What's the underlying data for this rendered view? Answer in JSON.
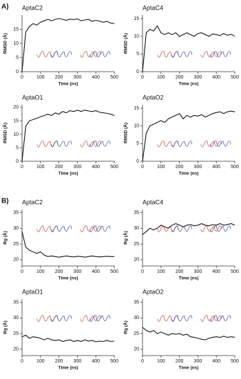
{
  "panel_labels": [
    "A)",
    "B)"
  ],
  "chart_data": [
    {
      "type": "line",
      "title": "AptaC2",
      "ylabel": "RMSD (Å)",
      "xlabel": "Time (ns)",
      "xlim": [
        0,
        500
      ],
      "xticks": [
        0,
        100,
        200,
        300,
        400,
        500
      ],
      "ylim": [
        0,
        20
      ],
      "yticks": [
        0,
        5,
        10,
        15
      ],
      "color": "#111111",
      "x": [
        0,
        20,
        40,
        60,
        80,
        100,
        120,
        140,
        160,
        180,
        200,
        220,
        240,
        260,
        280,
        300,
        320,
        340,
        360,
        380,
        400,
        420,
        440,
        460,
        480,
        500
      ],
      "values": [
        0,
        14,
        16,
        17,
        16.5,
        17.5,
        18,
        18.5,
        18,
        18.5,
        18.8,
        18.5,
        18.2,
        18.6,
        18.4,
        18.7,
        18,
        18.3,
        18.5,
        17.8,
        18.2,
        17.9,
        17.5,
        17.8,
        17.2,
        17
      ]
    },
    {
      "type": "line",
      "title": "AptaC4",
      "ylabel": "RMSD (Å)",
      "xlabel": "Time (ns)",
      "xlim": [
        0,
        500
      ],
      "xticks": [
        0,
        100,
        200,
        300,
        400,
        500
      ],
      "ylim": [
        0,
        16
      ],
      "yticks": [
        0,
        5,
        10,
        15
      ],
      "color": "#111111",
      "x": [
        0,
        20,
        40,
        60,
        80,
        100,
        120,
        140,
        160,
        180,
        200,
        220,
        240,
        260,
        280,
        300,
        320,
        340,
        360,
        380,
        400,
        420,
        440,
        460,
        480,
        500
      ],
      "values": [
        0,
        11,
        12,
        11.5,
        13,
        11,
        10.5,
        11,
        10.5,
        11,
        10,
        10.5,
        11,
        10.5,
        10,
        10.8,
        11,
        10.5,
        10,
        10.7,
        10.5,
        10.2,
        10.8,
        10.3,
        10.6,
        10
      ]
    },
    {
      "type": "line",
      "title": "AptaO1",
      "ylabel": "RMSD (Å)",
      "xlabel": "Time (ns)",
      "xlim": [
        0,
        500
      ],
      "xticks": [
        0,
        100,
        200,
        300,
        400,
        500
      ],
      "ylim": [
        0,
        21
      ],
      "yticks": [
        0,
        5,
        10,
        15,
        20
      ],
      "color": "#111111",
      "x": [
        0,
        20,
        40,
        60,
        80,
        100,
        120,
        140,
        160,
        180,
        200,
        220,
        240,
        260,
        280,
        300,
        320,
        340,
        360,
        380,
        400,
        420,
        440,
        460,
        480,
        500
      ],
      "values": [
        0,
        13,
        15,
        15.5,
        16,
        16.5,
        17,
        17.5,
        17,
        18,
        17.5,
        18.5,
        18,
        18.8,
        18.5,
        19,
        18.5,
        19,
        18.7,
        18.5,
        18.8,
        18.2,
        18,
        17.8,
        17.5,
        17
      ]
    },
    {
      "type": "line",
      "title": "AptaO2",
      "ylabel": "RMSD (Å)",
      "xlabel": "Time (ns)",
      "xlim": [
        0,
        500
      ],
      "xticks": [
        0,
        100,
        200,
        300,
        400,
        500
      ],
      "ylim": [
        0,
        16
      ],
      "yticks": [
        0,
        5,
        10,
        15
      ],
      "color": "#111111",
      "x": [
        0,
        20,
        40,
        60,
        80,
        100,
        120,
        140,
        160,
        180,
        200,
        220,
        240,
        260,
        280,
        300,
        320,
        340,
        360,
        380,
        400,
        420,
        440,
        460,
        480,
        500
      ],
      "values": [
        0,
        8,
        10,
        10.5,
        11,
        11.5,
        11,
        12,
        12.5,
        13,
        13.5,
        12,
        13,
        12.5,
        13,
        12.8,
        13.2,
        12.5,
        13,
        13.5,
        13.8,
        14,
        13.5,
        14,
        14.2,
        14
      ]
    },
    {
      "type": "line",
      "title": "AptaC2",
      "ylabel": "Rg (Å)",
      "xlabel": "Time (ns)",
      "xlim": [
        0,
        500
      ],
      "xticks": [
        0,
        100,
        200,
        300,
        400,
        500
      ],
      "ylim": [
        18,
        36
      ],
      "yticks": [
        20,
        25,
        30,
        35
      ],
      "color": "#111111",
      "x": [
        0,
        20,
        40,
        60,
        80,
        100,
        120,
        140,
        160,
        180,
        200,
        220,
        240,
        260,
        280,
        300,
        320,
        340,
        360,
        380,
        400,
        420,
        440,
        460,
        480,
        500
      ],
      "values": [
        29,
        24,
        23,
        22.5,
        22,
        22.5,
        21.5,
        21,
        21.2,
        21,
        20.8,
        21,
        21.2,
        21,
        20.9,
        21.1,
        21,
        20.8,
        21,
        21.2,
        21,
        20.9,
        21,
        21.1,
        21,
        21
      ]
    },
    {
      "type": "line",
      "title": "AptaC4",
      "ylabel": "Rg (Å)",
      "xlabel": "Time (ns)",
      "xlim": [
        0,
        500
      ],
      "xticks": [
        0,
        100,
        200,
        300,
        400,
        500
      ],
      "ylim": [
        18,
        36
      ],
      "yticks": [
        20,
        25,
        30,
        35
      ],
      "color": "#111111",
      "x": [
        0,
        20,
        40,
        60,
        80,
        100,
        120,
        140,
        160,
        180,
        200,
        220,
        240,
        260,
        280,
        300,
        320,
        340,
        360,
        380,
        400,
        420,
        440,
        460,
        480,
        500
      ],
      "values": [
        28,
        29,
        30,
        29.5,
        30,
        31,
        30.5,
        30,
        31,
        31.5,
        31,
        30.5,
        31,
        31.2,
        30.8,
        31,
        31.5,
        31,
        30.8,
        31.2,
        31,
        31.5,
        31,
        31.2,
        31.5,
        31
      ]
    },
    {
      "type": "line",
      "title": "AptaO1",
      "ylabel": "Rg (Å)",
      "xlabel": "Time (ns)",
      "xlim": [
        0,
        500
      ],
      "xticks": [
        0,
        100,
        200,
        300,
        400,
        500
      ],
      "ylim": [
        18,
        36
      ],
      "yticks": [
        20,
        25,
        30,
        35
      ],
      "color": "#111111",
      "x": [
        0,
        20,
        40,
        60,
        80,
        100,
        120,
        140,
        160,
        180,
        200,
        220,
        240,
        260,
        280,
        300,
        320,
        340,
        360,
        380,
        400,
        420,
        440,
        460,
        480,
        500
      ],
      "values": [
        24,
        24.5,
        23.5,
        24,
        23.8,
        23.5,
        23,
        23.5,
        23,
        22.8,
        23,
        22.5,
        22.8,
        23,
        22.5,
        22.8,
        22.5,
        23,
        22.6,
        22.8,
        22.4,
        22.6,
        22.5,
        22.8,
        22.5,
        22.6
      ]
    },
    {
      "type": "line",
      "title": "AptaO2",
      "ylabel": "Rg (Å)",
      "xlabel": "Time (ns)",
      "xlim": [
        0,
        500
      ],
      "xticks": [
        0,
        100,
        200,
        300,
        400,
        500
      ],
      "ylim": [
        18,
        36
      ],
      "yticks": [
        20,
        25,
        30,
        35
      ],
      "color": "#111111",
      "x": [
        0,
        20,
        40,
        60,
        80,
        100,
        120,
        140,
        160,
        180,
        200,
        220,
        240,
        260,
        280,
        300,
        320,
        340,
        360,
        380,
        400,
        420,
        440,
        460,
        480,
        500
      ],
      "values": [
        27,
        26,
        25.5,
        26,
        25,
        25.5,
        25,
        24.5,
        25,
        24.8,
        25,
        24.5,
        24.8,
        24,
        23.8,
        23.5,
        23.2,
        23,
        23.5,
        23.8,
        24,
        23.8,
        24.2,
        23.8,
        24,
        23.8
      ]
    }
  ]
}
